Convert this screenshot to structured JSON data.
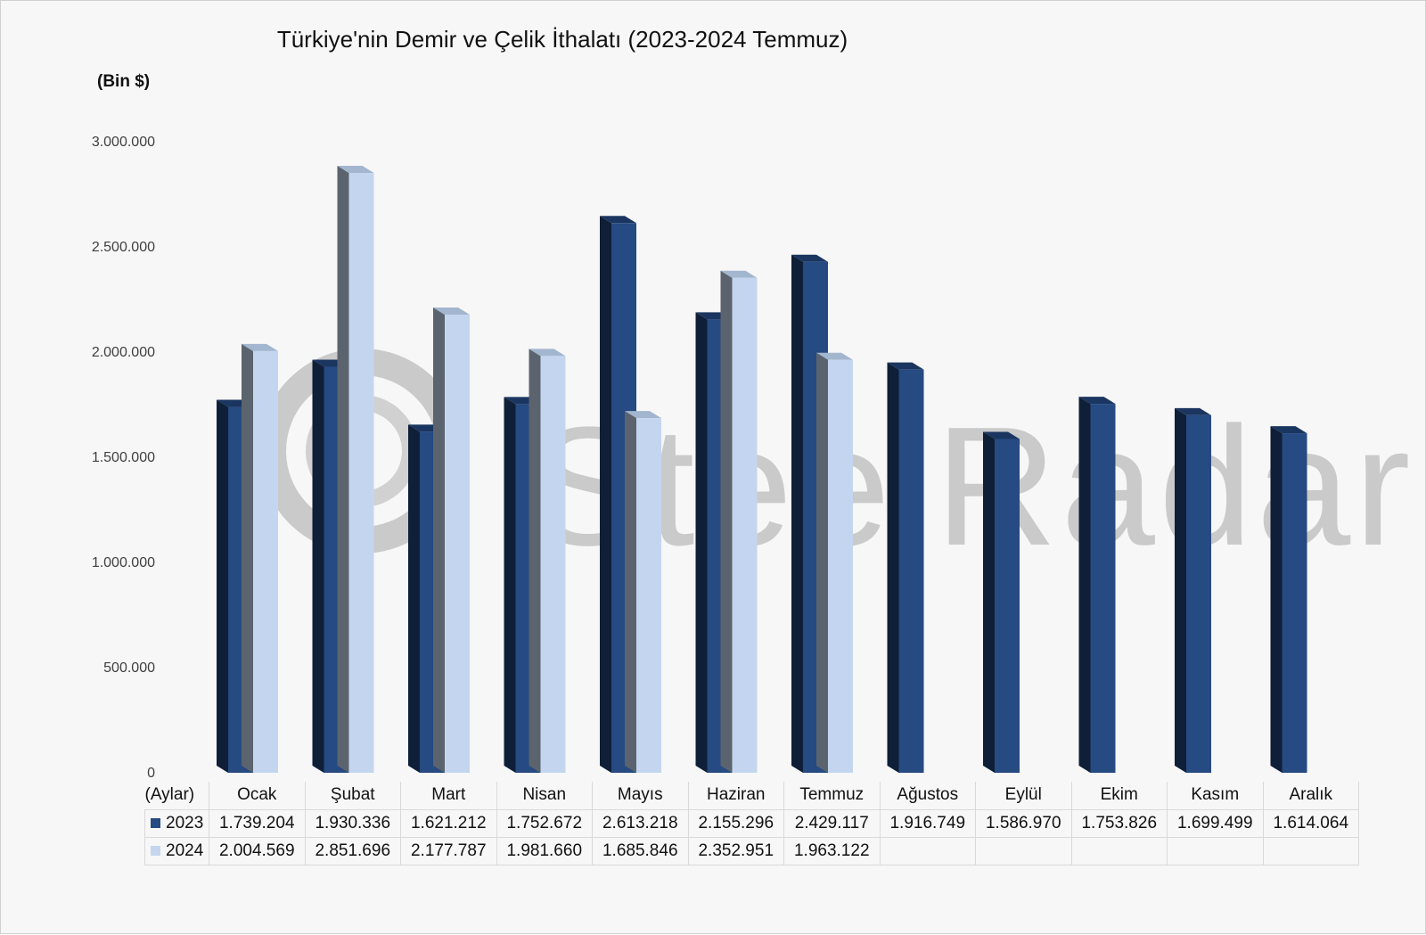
{
  "chart_data": {
    "type": "bar",
    "title": "Türkiye'nin Demir ve Çelik İthalatı (2023-2024 Temmuz)",
    "ylabel": "(Bin $)",
    "xlabel": "(Aylar)",
    "ylim": [
      0,
      3000000
    ],
    "yticks": [
      "0",
      "500.000",
      "1.000.000",
      "1.500.000",
      "2.000.000",
      "2.500.000",
      "3.000.000"
    ],
    "categories": [
      "Ocak",
      "Şubat",
      "Mart",
      "Nisan",
      "Mayıs",
      "Haziran",
      "Temmuz",
      "Ağustos",
      "Eylül",
      "Ekim",
      "Kasım",
      "Aralık"
    ],
    "series": [
      {
        "name": "2023",
        "color": "#264a82",
        "values": [
          1739204,
          1930336,
          1621212,
          1752672,
          2613218,
          2155296,
          2429117,
          1916749,
          1586970,
          1753826,
          1699499,
          1614064
        ],
        "labels": [
          "1.739.204",
          "1.930.336",
          "1.621.212",
          "1.752.672",
          "2.613.218",
          "2.155.296",
          "2.429.117",
          "1.916.749",
          "1.586.970",
          "1.753.826",
          "1.699.499",
          "1.614.064"
        ]
      },
      {
        "name": "2024",
        "color": "#c4d6ef",
        "values": [
          2004569,
          2851696,
          2177787,
          1981660,
          1685846,
          2352951,
          1963122,
          null,
          null,
          null,
          null,
          null
        ],
        "labels": [
          "2.004.569",
          "2.851.696",
          "2.177.787",
          "1.981.660",
          "1.685.846",
          "2.352.951",
          "1.963.122",
          "",
          "",
          "",
          "",
          ""
        ]
      }
    ],
    "grid": false,
    "legend": "data-table",
    "style": "3d-columns"
  },
  "watermark": {
    "text": "SteelRadar"
  }
}
